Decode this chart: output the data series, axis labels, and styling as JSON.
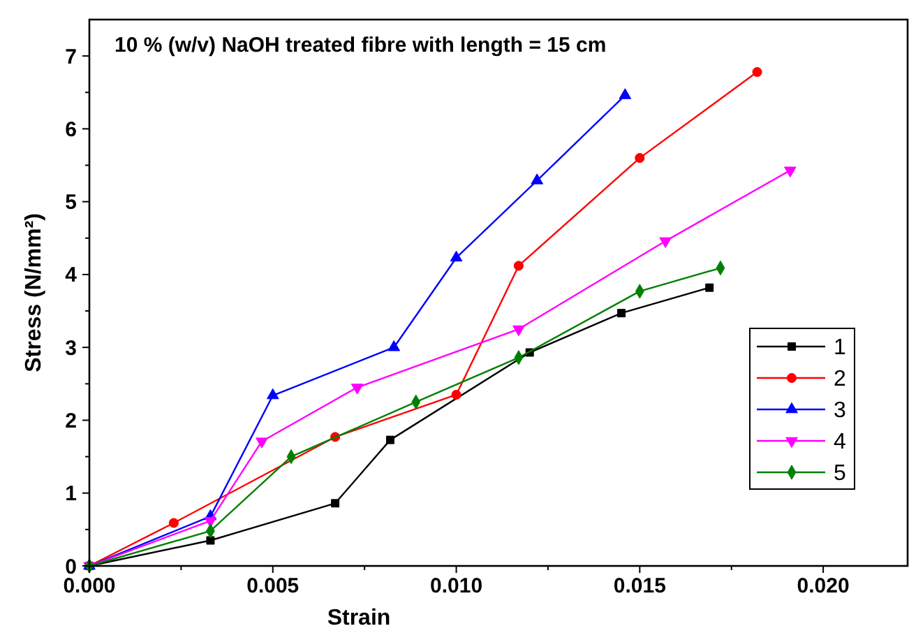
{
  "chart_data": {
    "type": "line",
    "title": "10 % (w/v) NaOH treated fibre with length = 15 cm",
    "xlabel": "Strain",
    "ylabel": "Stress (N/mm²)",
    "xlim": [
      0,
      0.0223
    ],
    "ylim": [
      0,
      7.5
    ],
    "xticks": [
      {
        "value": 0,
        "label": "0.000"
      },
      {
        "value": 0.0025,
        "label": null
      },
      {
        "value": 0.005,
        "label": "0.005"
      },
      {
        "value": 0.0075,
        "label": null
      },
      {
        "value": 0.01,
        "label": "0.010"
      },
      {
        "value": 0.0125,
        "label": null
      },
      {
        "value": 0.015,
        "label": "0.015"
      },
      {
        "value": 0.0175,
        "label": null
      },
      {
        "value": 0.02,
        "label": "0.020"
      }
    ],
    "yticks": [
      0,
      {
        "value": 0.5,
        "label": null
      },
      1,
      {
        "value": 1.5,
        "label": null
      },
      2,
      {
        "value": 2.5,
        "label": null
      },
      3,
      {
        "value": 3.5,
        "label": null
      },
      4,
      {
        "value": 4.5,
        "label": null
      },
      5,
      {
        "value": 5.5,
        "label": null
      },
      6,
      {
        "value": 6.5,
        "label": null
      },
      7
    ],
    "grid": false,
    "legend": "right",
    "series": [
      {
        "name": "1",
        "color": "#000000",
        "marker": "square",
        "x": [
          0,
          0.0033,
          0.0067,
          0.0082,
          0.012,
          0.0145,
          0.0169
        ],
        "values": [
          0,
          0.35,
          0.86,
          1.73,
          2.93,
          3.47,
          3.82
        ]
      },
      {
        "name": "2",
        "color": "#ff0000",
        "marker": "circle",
        "x": [
          0,
          0.0023,
          0.0067,
          0.01,
          0.0117,
          0.015,
          0.0182
        ],
        "values": [
          0,
          0.59,
          1.77,
          2.35,
          4.12,
          5.6,
          6.78
        ]
      },
      {
        "name": "3",
        "color": "#0000ff",
        "marker": "triangle",
        "x": [
          0,
          0.0033,
          0.005,
          0.0083,
          0.01,
          0.0122,
          0.0146
        ],
        "values": [
          0,
          0.68,
          2.34,
          3.0,
          4.23,
          5.29,
          6.46
        ]
      },
      {
        "name": "4",
        "color": "#ff00ff",
        "marker": "triangle-down",
        "x": [
          0,
          0.0033,
          0.0047,
          0.0073,
          0.0117,
          0.0157,
          0.0191
        ],
        "values": [
          0,
          0.62,
          1.71,
          2.45,
          3.25,
          4.46,
          5.43
        ]
      },
      {
        "name": "5",
        "color": "#008000",
        "marker": "diamond",
        "x": [
          0,
          0.0033,
          0.0055,
          0.0089,
          0.0117,
          0.015,
          0.0172
        ],
        "values": [
          0,
          0.48,
          1.5,
          2.25,
          2.86,
          3.77,
          4.09
        ]
      }
    ]
  }
}
